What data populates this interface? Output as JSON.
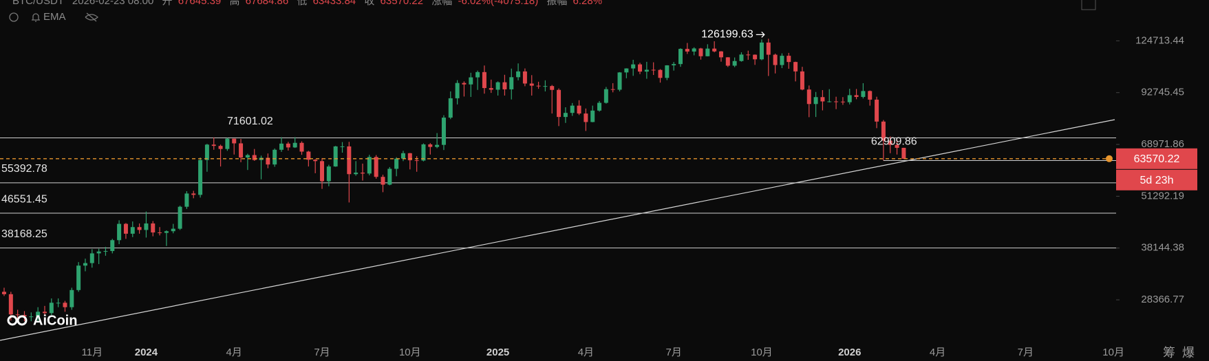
{
  "header": {
    "symbol": "BTC/USDT",
    "time": "2026-02-23 08:00",
    "open_label": "开",
    "high_label": "高",
    "low_label": "低",
    "close_label": "收",
    "change_label": "涨幅",
    "change": "-6.02%(-4075.18)",
    "amplitude_label": "振幅",
    "amplitude": "6.28%",
    "indicator": "EMA"
  },
  "watermark": "AiCoin",
  "toolbar": [
    "筹",
    "爆"
  ],
  "chart_data": {
    "type": "candlestick",
    "yscale": "log",
    "up_color": "#2ea36f",
    "down_color": "#e0474c",
    "ylim": [
      22500,
      157500
    ],
    "yticks": [
      124713.44,
      92745.45,
      68971.86,
      51292.19,
      38144.38,
      28366.77
    ],
    "categories": [
      null,
      null,
      null,
      null,
      null,
      null,
      null,
      null,
      null,
      null,
      null,
      null,
      null,
      "11月",
      null,
      null,
      null,
      null,
      null,
      null,
      null,
      "2024",
      null,
      null,
      null,
      null,
      null,
      null,
      null,
      null,
      null,
      null,
      null,
      null,
      "4月",
      null,
      null,
      null,
      null,
      null,
      null,
      null,
      null,
      null,
      null,
      null,
      null,
      "7月",
      null,
      null,
      null,
      null,
      null,
      null,
      null,
      null,
      null,
      null,
      null,
      null,
      "10月",
      null,
      null,
      null,
      null,
      null,
      null,
      null,
      null,
      null,
      null,
      null,
      null,
      "2025",
      null,
      null,
      null,
      null,
      null,
      null,
      null,
      null,
      null,
      null,
      null,
      null,
      "4月",
      null,
      null,
      null,
      null,
      null,
      null,
      null,
      null,
      null,
      null,
      null,
      null,
      "7月",
      null,
      null,
      null,
      null,
      null,
      null,
      null,
      null,
      null,
      null,
      null,
      null,
      "10月",
      null,
      null,
      null,
      null,
      null,
      null,
      null,
      null,
      null,
      null,
      null,
      null,
      "2026",
      null,
      null,
      null,
      null,
      null,
      null,
      null,
      null,
      null,
      null,
      null,
      null,
      "4月",
      null,
      null,
      null,
      null,
      null,
      null,
      null,
      null,
      null,
      null,
      null,
      null,
      "7月",
      null,
      null,
      null,
      null,
      null,
      null,
      null,
      null,
      null,
      null,
      null,
      null,
      "10月"
    ],
    "open": [
      29700,
      29300,
      26100,
      26000,
      25800,
      25800,
      26500,
      26300,
      27900,
      27900,
      27200,
      30000,
      34500,
      35000,
      37000,
      37400,
      37500,
      39900,
      43800,
      41400,
      43000,
      42300,
      43900,
      41700,
      41600,
      42000,
      42600,
      48300,
      52100,
      51700,
      63100,
      68900,
      68400,
      67200,
      71300,
      69400,
      64000,
      64900,
      63100,
      63900,
      61500,
      66900,
      69300,
      67800,
      69600,
      66200,
      63200,
      62700,
      55900,
      60800,
      68200,
      68200,
      58200,
      58700,
      58400,
      64200,
      57300,
      54800,
      60000,
      63600,
      65600,
      63000,
      62900,
      69000,
      68000,
      68800,
      80400,
      89800,
      98000,
      97200,
      101200,
      104300,
      95200,
      94300,
      98400,
      94500,
      101300,
      104700,
      97700,
      96500,
      96100,
      96300,
      94200,
      80700,
      82600,
      86100,
      82300,
      78400,
      83700,
      87500,
      94600,
      94300,
      104100,
      106500,
      109000,
      104600,
      105700,
      105600,
      100900,
      108400,
      109200,
      119100,
      117300,
      119400,
      114200,
      119300,
      117400,
      113500,
      108200,
      111100,
      115300,
      115200,
      112200,
      123500,
      115200,
      108600,
      114500,
      110500,
      104700,
      94400,
      86900,
      90400,
      88200,
      88200,
      88100,
      87800,
      91400,
      90500,
      93600,
      89100,
      78600,
      70500,
      68800,
      67645.39,
      null,
      null,
      null,
      null,
      null,
      null,
      null,
      null,
      null,
      null,
      null,
      null,
      null,
      null,
      null,
      null,
      null,
      null,
      null,
      null,
      null,
      null,
      null,
      null,
      null,
      null,
      null,
      null,
      null,
      null,
      null
    ],
    "high": [
      30400,
      29700,
      26800,
      26600,
      26400,
      27200,
      27400,
      28600,
      28600,
      28200,
      30400,
      35200,
      35900,
      37900,
      38000,
      38400,
      40200,
      44700,
      44000,
      44400,
      43900,
      47000,
      44500,
      43000,
      42200,
      43800,
      48600,
      52800,
      52900,
      64000,
      69200,
      71800,
      68900,
      71600,
      71300,
      71200,
      65400,
      67200,
      64700,
      65500,
      67400,
      71900,
      70000,
      71900,
      70200,
      66500,
      63400,
      63800,
      61400,
      68400,
      69900,
      70000,
      62700,
      61800,
      65000,
      64900,
      58000,
      60600,
      64100,
      66500,
      65700,
      64500,
      69400,
      69500,
      73600,
      81500,
      93400,
      99600,
      98900,
      103900,
      105200,
      108300,
      99900,
      98900,
      102700,
      106400,
      109600,
      106500,
      102500,
      98700,
      99500,
      96900,
      95000,
      85300,
      87400,
      88800,
      84700,
      86100,
      88400,
      95800,
      97900,
      104300,
      106600,
      111900,
      110000,
      110600,
      110300,
      106100,
      108500,
      110500,
      119500,
      123200,
      120200,
      119800,
      122300,
      124400,
      117600,
      113600,
      113400,
      116800,
      117900,
      115400,
      125700,
      126199.63,
      115900,
      116100,
      116400,
      110700,
      107500,
      96600,
      93100,
      94100,
      94600,
      90600,
      90400,
      94800,
      94700,
      97900,
      93900,
      90600,
      79300,
      72200,
      70900,
      67684.86,
      null,
      null,
      null,
      null,
      null,
      null,
      null,
      null,
      null,
      null,
      null,
      null,
      null,
      null,
      null,
      null,
      null,
      null,
      null,
      null,
      null,
      null,
      null,
      null,
      null,
      null,
      null,
      null,
      null,
      null,
      null
    ],
    "low": [
      29000,
      25200,
      25400,
      25100,
      25100,
      24900,
      25900,
      26000,
      27200,
      26500,
      26800,
      29700,
      33400,
      34100,
      34800,
      36500,
      37000,
      39000,
      40200,
      40600,
      41400,
      40500,
      40800,
      41000,
      38600,
      41500,
      42300,
      47700,
      50700,
      50900,
      59000,
      66900,
      60800,
      66500,
      65100,
      62300,
      59600,
      62800,
      56500,
      60200,
      60700,
      66100,
      66600,
      67600,
      65000,
      60800,
      58500,
      53500,
      54300,
      60700,
      65800,
      49500,
      57700,
      56100,
      57800,
      56700,
      52500,
      54600,
      57500,
      62700,
      59800,
      59000,
      62600,
      65100,
      67500,
      66800,
      79700,
      86700,
      90700,
      90500,
      94200,
      92200,
      92600,
      91200,
      91200,
      89200,
      99500,
      96200,
      91200,
      94800,
      93400,
      82300,
      76600,
      78000,
      81200,
      81600,
      74500,
      78300,
      83200,
      87100,
      92900,
      93400,
      100700,
      102100,
      103100,
      100400,
      102600,
      98200,
      99600,
      105200,
      107500,
      115700,
      114800,
      112000,
      114100,
      116800,
      110700,
      107400,
      107300,
      110700,
      111900,
      108700,
      111600,
      102000,
      103500,
      106700,
      106300,
      98900,
      94000,
      80600,
      80700,
      83800,
      87700,
      84400,
      86500,
      86700,
      89300,
      89700,
      86100,
      75700,
      62909.86,
      65600,
      65100,
      63433.84,
      null,
      null,
      null,
      null,
      null,
      null,
      null,
      null,
      null,
      null,
      null,
      null,
      null,
      null,
      null,
      null,
      null,
      null,
      null,
      null,
      null,
      null,
      null,
      null,
      null,
      null,
      null,
      null,
      null,
      null,
      null
    ],
    "close": [
      29300,
      26100,
      26000,
      25800,
      25800,
      26500,
      26300,
      27900,
      27900,
      27200,
      30000,
      34500,
      35000,
      37000,
      37400,
      37500,
      39900,
      43800,
      41400,
      43000,
      42300,
      43900,
      41700,
      41600,
      42000,
      42600,
      48300,
      52100,
      51700,
      63100,
      68900,
      68400,
      67200,
      71300,
      69400,
      64000,
      64900,
      63100,
      63900,
      61500,
      66900,
      69300,
      67800,
      69600,
      66200,
      63200,
      62700,
      55900,
      60800,
      68200,
      68200,
      58200,
      58700,
      58400,
      64200,
      57300,
      54800,
      60000,
      63600,
      65600,
      63000,
      62900,
      69000,
      68000,
      68800,
      80400,
      89800,
      98000,
      97200,
      101200,
      104300,
      95200,
      94300,
      98400,
      94500,
      101300,
      104700,
      97700,
      96500,
      96100,
      96300,
      94200,
      80700,
      82600,
      86100,
      82300,
      78400,
      83700,
      87500,
      94600,
      94300,
      104100,
      106500,
      109000,
      104600,
      105700,
      105600,
      100900,
      108400,
      109200,
      119100,
      117300,
      119400,
      114200,
      119300,
      117400,
      113500,
      108200,
      111100,
      115300,
      115200,
      112200,
      123500,
      115200,
      108600,
      114500,
      110500,
      104700,
      94400,
      86900,
      90400,
      88200,
      88200,
      88100,
      87800,
      91400,
      90500,
      93600,
      89100,
      78600,
      70500,
      68800,
      67645.39,
      63570.22,
      null,
      null,
      null,
      null,
      null,
      null,
      null,
      null,
      null,
      null,
      null,
      null,
      null,
      null,
      null,
      null,
      null,
      null,
      null,
      null,
      null,
      null,
      null,
      null,
      null,
      null,
      null,
      null,
      null,
      null,
      null
    ],
    "levels": [
      71601.02,
      55392.78,
      46551.45,
      38168.25
    ],
    "price_color": "#e8962e",
    "countdown": "5d 23h"
  }
}
